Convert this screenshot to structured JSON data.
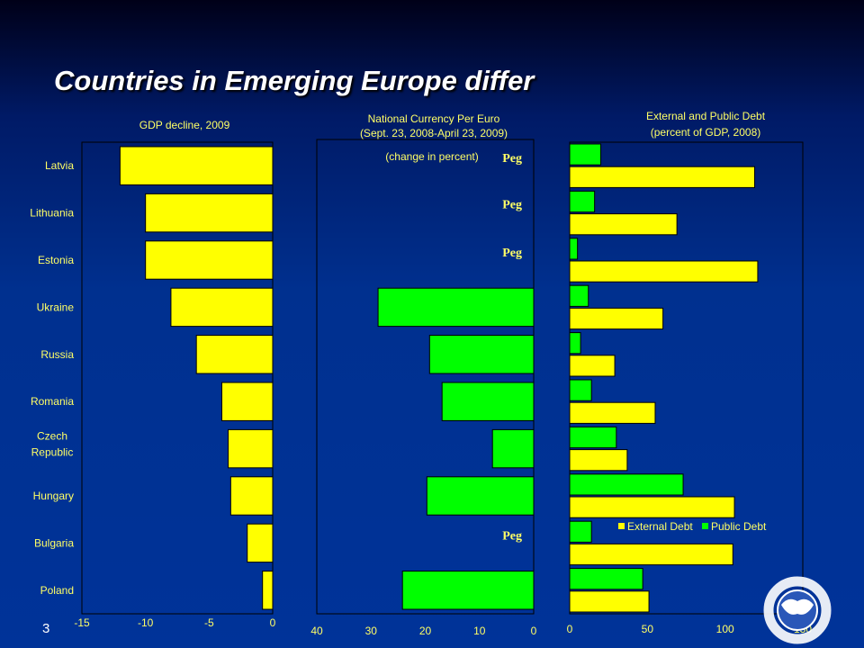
{
  "slide": {
    "title": "Countries in Emerging Europe differ",
    "page_number": "3"
  },
  "logo": {
    "text": "INTERNATIONAL MONETARY FUND"
  },
  "colors": {
    "background": "#003399",
    "yellow": "#ffff00",
    "green": "#00ff00",
    "text": "#ffff66"
  },
  "chart_data": [
    {
      "type": "bar",
      "orientation": "horizontal",
      "title": "GDP decline, 2009",
      "categories": [
        "Latvia",
        "Lithuania",
        "Estonia",
        "Ukraine",
        "Russia",
        "Romania",
        "Czech Republic",
        "Hungary",
        "Bulgaria",
        "Poland"
      ],
      "values": [
        -12,
        -10,
        -10,
        -8,
        -6,
        -4,
        -3.5,
        -3.3,
        -2,
        -0.8
      ],
      "xlim": [
        -15,
        0
      ],
      "xticks": [
        "-15",
        "-10",
        "-5",
        "0"
      ],
      "color": "#ffff00"
    },
    {
      "type": "bar",
      "orientation": "horizontal",
      "title": "National Currency Per Euro",
      "subtitle": "(Sept. 23, 2008-April 23, 2009)",
      "annotation": "(change in percent)",
      "peg_label": "Peg",
      "categories": [
        "Latvia",
        "Lithuania",
        "Estonia",
        "Ukraine",
        "Russia",
        "Romania",
        "Czech Republic",
        "Hungary",
        "Bulgaria",
        "Poland"
      ],
      "values": [
        null,
        null,
        null,
        28.7,
        19.2,
        16.9,
        7.6,
        19.7,
        null,
        24.2
      ],
      "pegged": [
        true,
        true,
        true,
        false,
        false,
        false,
        false,
        false,
        true,
        false
      ],
      "xlim": [
        40,
        0
      ],
      "xaxis_reversed": true,
      "xticks": [
        "40",
        "30",
        "20",
        "10",
        "0"
      ],
      "color": "#00ff00"
    },
    {
      "type": "bar",
      "orientation": "horizontal",
      "title": "External and Public Debt",
      "subtitle": "(percent of GDP, 2008)",
      "categories": [
        "Latvia",
        "Lithuania",
        "Estonia",
        "Ukraine",
        "Russia",
        "Romania",
        "Czech Republic",
        "Hungary",
        "Bulgaria",
        "Poland"
      ],
      "series": [
        {
          "name": "External Debt",
          "color": "#ffff00",
          "values": [
            119,
            69,
            121,
            60,
            29,
            55,
            37,
            106,
            105,
            51
          ]
        },
        {
          "name": "Public Debt",
          "color": "#00ff00",
          "values": [
            20,
            16,
            5,
            12,
            7,
            14,
            30,
            73,
            14,
            47
          ]
        }
      ],
      "xlim": [
        0,
        150
      ],
      "xticks": [
        "0",
        "50",
        "100",
        "150"
      ],
      "legend": "inside-bottom"
    }
  ]
}
